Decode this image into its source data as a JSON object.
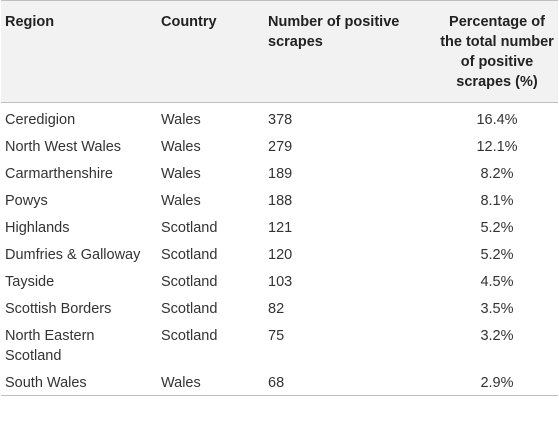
{
  "table": {
    "headers": {
      "region": "Region",
      "country": "Country",
      "count": "Number of positive scrapes",
      "percentage": "Percentage of the total number of positive scrapes (%)"
    },
    "rows": [
      {
        "region": "Ceredigion",
        "country": "Wales",
        "count": "378",
        "percentage": "16.4%"
      },
      {
        "region": "North West Wales",
        "country": "Wales",
        "count": "279",
        "percentage": "12.1%"
      },
      {
        "region": "Carmarthenshire",
        "country": "Wales",
        "count": "189",
        "percentage": "8.2%"
      },
      {
        "region": "Powys",
        "country": "Wales",
        "count": "188",
        "percentage": "8.1%"
      },
      {
        "region": "Highlands",
        "country": "Scotland",
        "count": "121",
        "percentage": "5.2%"
      },
      {
        "region": "Dumfries & Galloway",
        "country": "Scotland",
        "count": "120",
        "percentage": "5.2%"
      },
      {
        "region": "Tayside",
        "country": "Scotland",
        "count": "103",
        "percentage": "4.5%"
      },
      {
        "region": "Scottish Borders",
        "country": "Scotland",
        "count": "82",
        "percentage": "3.5%"
      },
      {
        "region": "North Eastern Scotland",
        "country": "Scotland",
        "count": "75",
        "percentage": "3.2%"
      },
      {
        "region": "South Wales",
        "country": "Wales",
        "count": "68",
        "percentage": "2.9%"
      }
    ]
  },
  "colors": {
    "header_background": "#f2f2f2",
    "rule": "#bfbfbf",
    "text": "#333333"
  }
}
